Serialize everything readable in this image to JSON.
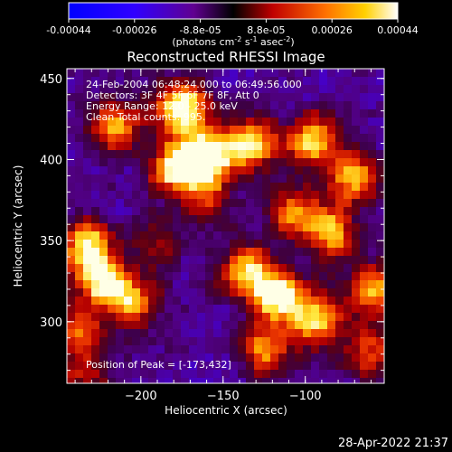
{
  "chart_data": {
    "type": "heatmap",
    "title": "Reconstructed RHESSI Image",
    "xlabel": "Heliocentric X (arcsec)",
    "ylabel": "Heliocentric Y (arcsec)",
    "xlim": [
      -245,
      -52
    ],
    "ylim": [
      262,
      456
    ],
    "x_ticks": [
      -200,
      -150,
      -100
    ],
    "y_ticks": [
      300,
      350,
      400,
      450
    ],
    "colorbar": {
      "ticks": [
        "-0.00044",
        "-0.00026",
        "-8.8e-05",
        "8.8e-05",
        "0.00026",
        "0.00044"
      ],
      "units_pre": "(photons cm",
      "units_sup1": "-2",
      "units_mid": " s",
      "units_sup2": "-1",
      "units_mid2": " asec",
      "units_sup3": "-2",
      "units_post": ")",
      "range": [
        -0.00044,
        0.00044
      ]
    },
    "annotations": [
      "24-Feb-2004 06:48:24.000 to 06:49:56.000",
      "Detectors: 3F 4F 5F 6F 7F 8F, Att 0",
      "Energy Range: 12.0 - 25.0 keV",
      "Clean    Total counts: 995."
    ],
    "peak_label": "Position of Peak = [-173,432]",
    "peak": [
      -173,
      432
    ],
    "hot_spots": [
      {
        "x": -175,
        "y": 432,
        "v": 1.0
      },
      {
        "x": -160,
        "y": 402,
        "v": 0.95
      },
      {
        "x": -178,
        "y": 395,
        "v": 0.9
      },
      {
        "x": -133,
        "y": 410,
        "v": 0.88
      },
      {
        "x": -215,
        "y": 420,
        "v": 0.7
      },
      {
        "x": -95,
        "y": 412,
        "v": 0.78
      },
      {
        "x": -70,
        "y": 390,
        "v": 0.72
      },
      {
        "x": -225,
        "y": 325,
        "v": 0.85
      },
      {
        "x": -232,
        "y": 348,
        "v": 0.8
      },
      {
        "x": -205,
        "y": 312,
        "v": 0.7
      },
      {
        "x": -238,
        "y": 295,
        "v": 0.55
      },
      {
        "x": -115,
        "y": 315,
        "v": 0.95
      },
      {
        "x": -135,
        "y": 330,
        "v": 0.82
      },
      {
        "x": -92,
        "y": 300,
        "v": 0.75
      },
      {
        "x": -60,
        "y": 320,
        "v": 0.7
      },
      {
        "x": -85,
        "y": 355,
        "v": 0.72
      },
      {
        "x": -108,
        "y": 368,
        "v": 0.6
      },
      {
        "x": -160,
        "y": 375,
        "v": 0.45
      },
      {
        "x": -125,
        "y": 282,
        "v": 0.65
      },
      {
        "x": -62,
        "y": 280,
        "v": 0.58
      },
      {
        "x": -235,
        "y": 268,
        "v": 0.4
      },
      {
        "x": -190,
        "y": 350,
        "v": 0.35
      }
    ]
  },
  "footer": {
    "timestamp": "28-Apr-2022 21:37"
  }
}
